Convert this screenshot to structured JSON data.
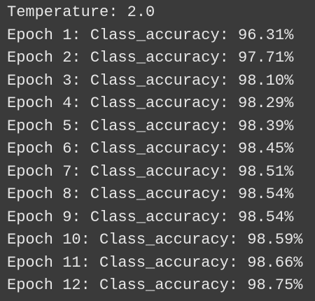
{
  "console": {
    "lines": [
      "Temperature: 2.0",
      "Epoch 1: Class_accuracy: 96.31%",
      "Epoch 2: Class_accuracy: 97.71%",
      "Epoch 3: Class_accuracy: 98.10%",
      "Epoch 4: Class_accuracy: 98.29%",
      "Epoch 5: Class_accuracy: 98.39%",
      "Epoch 6: Class_accuracy: 98.45%",
      "Epoch 7: Class_accuracy: 98.51%",
      "Epoch 8: Class_accuracy: 98.54%",
      "Epoch 9: Class_accuracy: 98.54%",
      "Epoch 10: Class_accuracy: 98.59%",
      "Epoch 11: Class_accuracy: 98.66%",
      "Epoch 12: Class_accuracy: 98.75%"
    ]
  }
}
